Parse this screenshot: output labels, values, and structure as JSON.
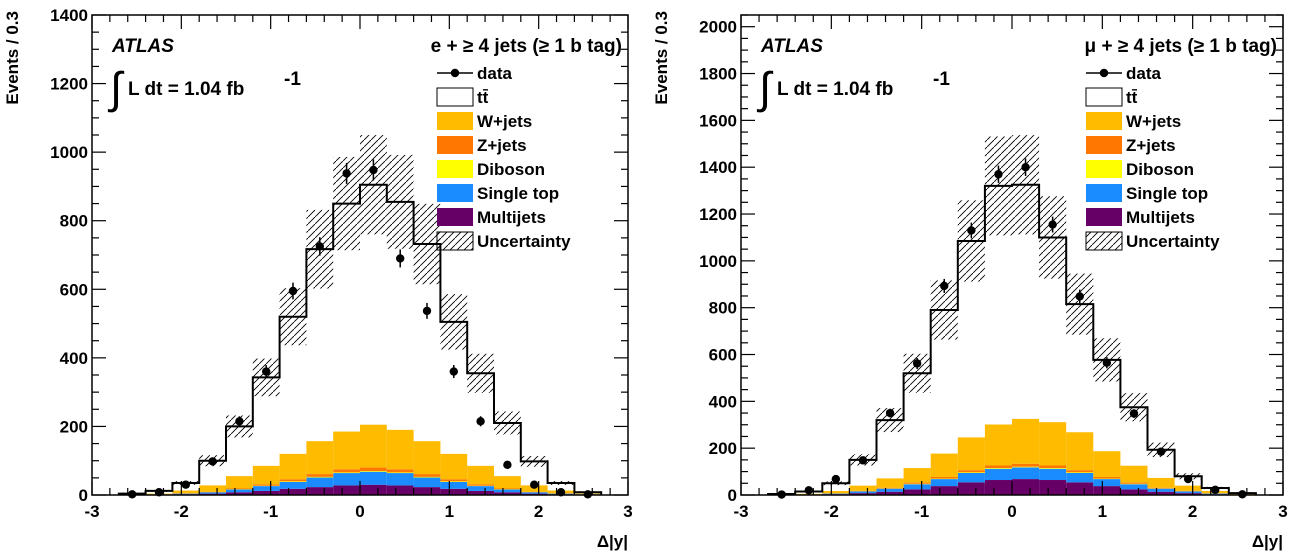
{
  "chart_data": [
    {
      "type": "bar",
      "stacked": true,
      "xlabel": "Δ|y|",
      "ylabel": "Events / 0.3",
      "xlim": [
        -3,
        3
      ],
      "ylim": [
        0,
        1400
      ],
      "xticks": [
        "-3",
        "-2",
        "-1",
        "0",
        "1",
        "2",
        "3"
      ],
      "yticks": [
        "0",
        "200",
        "400",
        "600",
        "800",
        "1000",
        "1200",
        "1400"
      ],
      "atlas_label": "ATLAS",
      "lumi_label": "L dt = 1.04 fb",
      "lumi_sup": "-1",
      "channel_label": "e + ≥ 4 jets (≥ 1 b tag)",
      "grid": false,
      "legend_position": "top-right",
      "bin_edges": [
        -2.7,
        -2.4,
        -2.1,
        -1.8,
        -1.5,
        -1.2,
        -0.9,
        -0.6,
        -0.3,
        0,
        0.3,
        0.6,
        0.9,
        1.2,
        1.5,
        1.8,
        2.1,
        2.4,
        2.7
      ],
      "series": [
        {
          "name": "Multijets",
          "color": "#660066",
          "values": [
            0,
            1,
            2,
            4,
            8,
            12,
            18,
            23,
            28,
            30,
            28,
            23,
            18,
            12,
            8,
            4,
            2,
            1
          ]
        },
        {
          "name": "Single top",
          "color": "#1a8cff",
          "values": [
            0,
            1,
            2,
            4,
            8,
            14,
            20,
            28,
            36,
            38,
            36,
            28,
            20,
            14,
            8,
            4,
            2,
            1
          ]
        },
        {
          "name": "Diboson",
          "color": "#ffff00",
          "values": [
            0,
            0,
            0,
            0,
            1,
            1,
            2,
            2,
            2,
            2,
            2,
            2,
            2,
            1,
            1,
            0,
            0,
            0
          ]
        },
        {
          "name": "Z+jets",
          "color": "#ff7700",
          "values": [
            0,
            0,
            1,
            1,
            2,
            4,
            6,
            8,
            9,
            10,
            9,
            8,
            6,
            4,
            2,
            1,
            1,
            0
          ]
        },
        {
          "name": "W+jets",
          "color": "#ffbb00",
          "values": [
            1,
            2,
            8,
            19,
            36,
            54,
            74,
            96,
            110,
            125,
            115,
            96,
            74,
            54,
            36,
            19,
            8,
            2
          ]
        },
        {
          "name": "tt̄",
          "color": "#ffffff",
          "values": [
            3,
            8,
            22,
            72,
            145,
            258,
            400,
            560,
            665,
            700,
            665,
            575,
            385,
            270,
            155,
            70,
            22,
            4
          ]
        }
      ],
      "total": [
        4,
        12,
        35,
        100,
        200,
        343,
        520,
        717,
        850,
        905,
        855,
        732,
        505,
        355,
        210,
        98,
        35,
        8
      ],
      "uncertainty_legend": "Uncertainty",
      "data": {
        "name": "data",
        "x": [
          -2.55,
          -2.25,
          -1.95,
          -1.65,
          -1.35,
          -1.05,
          -0.75,
          -0.45,
          -0.15,
          0.15,
          0.45,
          0.75,
          1.05,
          1.35,
          1.65,
          1.95,
          2.25,
          2.55
        ],
        "y": [
          2,
          8,
          30,
          98,
          215,
          360,
          595,
          725,
          938,
          948,
          690,
          537,
          360,
          215,
          88,
          30,
          8,
          2
        ]
      }
    },
    {
      "type": "bar",
      "stacked": true,
      "xlabel": "Δ|y|",
      "ylabel": "Events / 0.3",
      "xlim": [
        -3,
        3
      ],
      "ylim": [
        0,
        2050
      ],
      "xticks": [
        "-3",
        "-2",
        "-1",
        "0",
        "1",
        "2",
        "3"
      ],
      "yticks": [
        "0",
        "200",
        "400",
        "600",
        "800",
        "1000",
        "1200",
        "1400",
        "1600",
        "1800",
        "2000"
      ],
      "atlas_label": "ATLAS",
      "lumi_label": "L dt = 1.04 fb",
      "lumi_sup": "-1",
      "channel_label": "μ + ≥ 4 jets (≥ 1 b tag)",
      "grid": false,
      "legend_position": "top-right",
      "bin_edges": [
        -2.7,
        -2.4,
        -2.1,
        -1.8,
        -1.5,
        -1.2,
        -0.9,
        -0.6,
        -0.3,
        0,
        0.3,
        0.6,
        0.9,
        1.2,
        1.5,
        1.8,
        2.1,
        2.4,
        2.7
      ],
      "series": [
        {
          "name": "Multijets",
          "color": "#660066",
          "values": [
            0,
            1,
            3,
            8,
            14,
            24,
            38,
            54,
            64,
            68,
            64,
            54,
            38,
            24,
            14,
            8,
            3,
            1
          ]
        },
        {
          "name": "Single top",
          "color": "#1a8cff",
          "values": [
            0,
            1,
            3,
            7,
            13,
            22,
            30,
            40,
            48,
            50,
            48,
            40,
            30,
            22,
            13,
            7,
            3,
            1
          ]
        },
        {
          "name": "Diboson",
          "color": "#ffff00",
          "values": [
            0,
            0,
            0,
            1,
            1,
            2,
            2,
            3,
            3,
            3,
            3,
            3,
            2,
            2,
            1,
            1,
            0,
            0
          ]
        },
        {
          "name": "Z+jets",
          "color": "#ff7700",
          "values": [
            0,
            0,
            1,
            2,
            3,
            5,
            7,
            9,
            11,
            12,
            11,
            9,
            7,
            5,
            3,
            2,
            1,
            0
          ]
        },
        {
          "name": "W+jets",
          "color": "#ffbb00",
          "values": [
            1,
            3,
            10,
            22,
            40,
            62,
            100,
            140,
            175,
            192,
            185,
            162,
            110,
            72,
            42,
            22,
            10,
            2
          ]
        },
        {
          "name": "tt̄",
          "color": "#ffffff",
          "values": [
            3,
            10,
            33,
            110,
            249,
            405,
            613,
            839,
            1019,
            1000,
            789,
            547,
            390,
            250,
            120,
            40,
            13,
            4
          ]
        }
      ],
      "total": [
        4,
        15,
        50,
        150,
        320,
        520,
        790,
        1085,
        1320,
        1325,
        1100,
        815,
        577,
        375,
        193,
        80,
        30,
        8
      ],
      "uncertainty_legend": "Uncertainty",
      "data": {
        "name": "data",
        "x": [
          -2.55,
          -2.25,
          -1.95,
          -1.65,
          -1.35,
          -1.05,
          -0.75,
          -0.45,
          -0.15,
          0.15,
          0.45,
          0.75,
          1.05,
          1.35,
          1.65,
          1.95,
          2.25,
          2.55
        ],
        "y": [
          2,
          20,
          68,
          148,
          350,
          562,
          893,
          1130,
          1370,
          1400,
          1155,
          848,
          565,
          348,
          185,
          68,
          22,
          3
        ]
      }
    }
  ]
}
